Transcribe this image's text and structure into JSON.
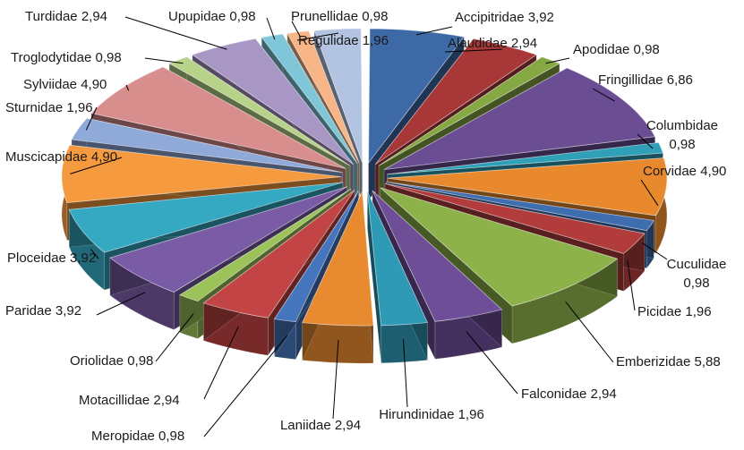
{
  "chart_data": {
    "type": "pie",
    "style": "3d-exploded",
    "start_angle_deg": 0,
    "direction": "clockwise",
    "legend": "none",
    "slices": [
      {
        "label": "Accipitridae",
        "value": 3.92,
        "display": "Accipitridae 3,92",
        "color": "#3d6aa6"
      },
      {
        "label": "Alaudidae",
        "value": 2.94,
        "display": "Alaudidae 2,94",
        "color": "#a83838"
      },
      {
        "label": "Apodidae",
        "value": 0.98,
        "display": "Apodidae 0,98",
        "color": "#86a843"
      },
      {
        "label": "Fringillidae",
        "value": 6.86,
        "display": "Fringillidae 6,86",
        "color": "#6a4d93"
      },
      {
        "label": "Columbidae",
        "value": 0.98,
        "display": "Columbidae 0,98",
        "color": "#2fa0b8"
      },
      {
        "label": "Corvidae",
        "value": 4.9,
        "display": "Corvidae 4,90",
        "color": "#e8892e"
      },
      {
        "label": "Cuculidae",
        "value": 0.98,
        "display": "Cuculidae 0,98",
        "color": "#3f6eb0"
      },
      {
        "label": "Picidae",
        "value": 1.96,
        "display": "Picidae 1,96",
        "color": "#b23c3c"
      },
      {
        "label": "Emberizidae",
        "value": 5.88,
        "display": "Emberizidae 5,88",
        "color": "#8db24a"
      },
      {
        "label": "Falconidae",
        "value": 2.94,
        "display": "Falconidae 2,94",
        "color": "#6d4e97"
      },
      {
        "label": "Hirundinidae",
        "value": 1.96,
        "display": "Hirundinidae 1,96",
        "color": "#2e9ab5"
      },
      {
        "label": "Laniidae",
        "value": 2.94,
        "display": "Laniidae 2,94",
        "color": "#e88a30"
      },
      {
        "label": "Meropidae",
        "value": 0.98,
        "display": "Meropidae 0,98",
        "color": "#4576bd"
      },
      {
        "label": "Motacillidae",
        "value": 2.94,
        "display": "Motacillidae 2,94",
        "color": "#c24444"
      },
      {
        "label": "Oriolidae",
        "value": 0.98,
        "display": "Oriolidae 0,98",
        "color": "#9bc35a"
      },
      {
        "label": "Paridae",
        "value": 3.92,
        "display": "Paridae 3,92",
        "color": "#7a5ca6"
      },
      {
        "label": "Ploceidae",
        "value": 3.92,
        "display": "Ploceidae 3,92",
        "color": "#35a8c2"
      },
      {
        "label": "Muscicapidae",
        "value": 4.9,
        "display": "Muscicapidae 4,90",
        "color": "#f59a3e"
      },
      {
        "label": "Sturnidae",
        "value": 1.96,
        "display": "Sturnidae 1,96",
        "color": "#8fa9d8"
      },
      {
        "label": "Sylviidae",
        "value": 4.9,
        "display": "Sylviidae 4,90",
        "color": "#d98e8e"
      },
      {
        "label": "Troglodytidae",
        "value": 0.98,
        "display": "Troglodytidae 0,98",
        "color": "#b7d38a"
      },
      {
        "label": "Turdidae",
        "value": 2.94,
        "display": "Turdidae 2,94",
        "color": "#a896c4"
      },
      {
        "label": "Upupidae",
        "value": 0.98,
        "display": "Upupidae 0,98",
        "color": "#7ec6d8"
      },
      {
        "label": "Prunellidae",
        "value": 0.98,
        "display": "Prunellidae 0,98",
        "color": "#f8b587"
      },
      {
        "label": "Regulidae",
        "value": 1.96,
        "display": "Regulidae 1,96",
        "color": "#b3c3e2"
      }
    ]
  }
}
